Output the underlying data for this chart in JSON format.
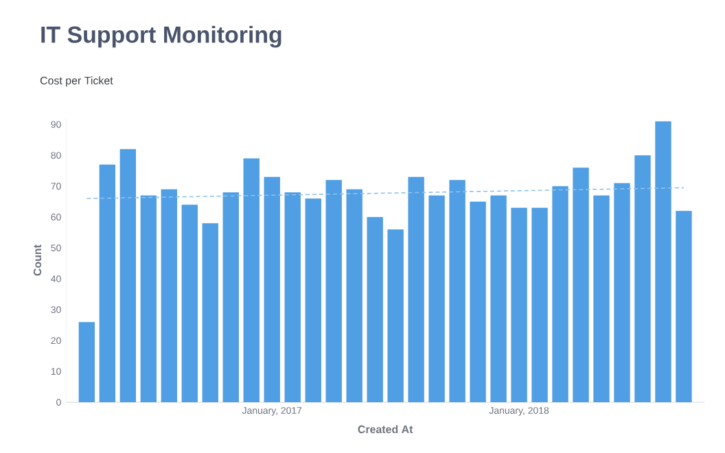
{
  "chart_data": {
    "type": "bar",
    "title": "IT Support Monitoring",
    "subtitle": "Cost per Ticket",
    "xlabel": "Created At",
    "ylabel": "Count",
    "x": [
      "2016-04",
      "2016-05",
      "2016-06",
      "2016-07",
      "2016-08",
      "2016-09",
      "2016-10",
      "2016-11",
      "2016-12",
      "2017-01",
      "2017-02",
      "2017-03",
      "2017-04",
      "2017-05",
      "2017-06",
      "2017-07",
      "2017-08",
      "2017-09",
      "2017-10",
      "2017-11",
      "2017-12",
      "2018-01",
      "2018-02",
      "2018-03",
      "2018-04",
      "2018-05",
      "2018-06",
      "2018-07",
      "2018-08",
      "2018-09"
    ],
    "series": [
      {
        "color": "#509ee3",
        "values": [
          26,
          77,
          82,
          67,
          69,
          64,
          58,
          68,
          79,
          73,
          68,
          66,
          72,
          69,
          60,
          56,
          73,
          67,
          72,
          65,
          67,
          63,
          63,
          70,
          76,
          67,
          71,
          80,
          91,
          62
        ]
      },
      {
        "type": "line",
        "color": "#8fc0ee",
        "line_style": "dashed",
        "x": [
          "2016-04",
          "2018-09"
        ],
        "values": [
          66,
          69.5
        ]
      }
    ],
    "xlim": [
      "2016-03",
      "2018-10"
    ],
    "ylim": [
      0,
      92
    ],
    "xticks": [
      {
        "value": "2017-01",
        "label": "January, 2017"
      },
      {
        "value": "2018-01",
        "label": "January, 2018"
      }
    ],
    "yticks": [
      0,
      10,
      20,
      30,
      40,
      50,
      60,
      70,
      80,
      90
    ],
    "grid": false
  }
}
